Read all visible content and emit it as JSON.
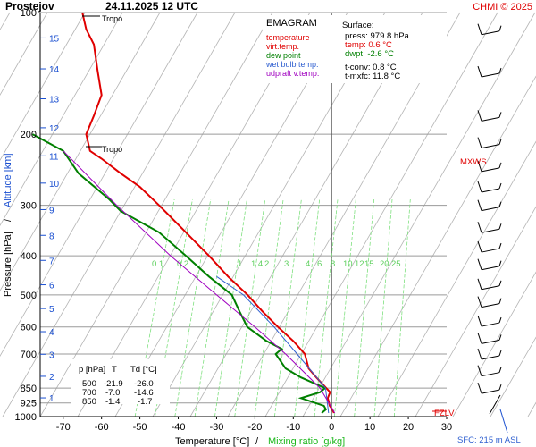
{
  "header": {
    "station": "Prostejov",
    "datetime": "24.11.2025 12 UTC",
    "credit": "CHMI © 2025"
  },
  "legend": {
    "title": "EMAGRAM",
    "items": [
      {
        "label": "temperature",
        "color": "#e00000"
      },
      {
        "label": "virt.temp.",
        "color": "#e00000"
      },
      {
        "label": "dew point",
        "color": "#008000"
      },
      {
        "label": "wet bulb temp.",
        "color": "#3060d0"
      },
      {
        "label": "udpraft v.temp.",
        "color": "#a000c0"
      }
    ]
  },
  "surface_box": {
    "title": "Surface:",
    "press": "press: 979.8 hPa",
    "temp": "temp: 0.6 °C",
    "dwpt": "dwpt: -2.6 °C",
    "wetbulb": "t-conv: 0.8 °C",
    "tconv": "t-mxfc: 11.8 °C",
    "colors": {
      "press": "#000000",
      "temp": "#e00000",
      "dwpt": "#008000"
    }
  },
  "table": {
    "header": [
      "p [hPa]",
      "T",
      "Td [°C]"
    ],
    "rows": [
      [
        "500",
        "-21.9",
        "-26.0"
      ],
      [
        "700",
        "-7.0",
        "-14.6"
      ],
      [
        "850",
        "-1.4",
        "-1.7"
      ]
    ]
  },
  "annotations": {
    "tropo": "Tropo",
    "mxws": "MXWS",
    "fzlv": "FZLV",
    "sfc": "SFC: 215 m ASL"
  },
  "axis": {
    "y_left_label": "Pressure [hPa]",
    "y_sep": " / ",
    "y_right_label": "Altitude [km]",
    "x_label": "Temperature [°C]",
    "x_sep": " / ",
    "x_label2": "Mixing ratio [g/kg]"
  },
  "chart_data": {
    "type": "line",
    "x_ticks": [
      -70,
      -60,
      -50,
      -40,
      -30,
      -20,
      -10,
      0,
      10,
      20,
      30
    ],
    "xlim": [
      -76,
      30
    ],
    "y_ticks": [
      100,
      200,
      300,
      400,
      500,
      600,
      700,
      850,
      925,
      1000
    ],
    "ylim": [
      100,
      1000
    ],
    "y_scale": "log",
    "altitude_ticks_km": [
      1,
      2,
      3,
      4,
      5,
      6,
      7,
      8,
      9,
      10,
      11,
      12,
      13,
      14,
      15
    ],
    "mixing_ratio_labels": [
      "0.1",
      "0.2",
      "1",
      "1.4",
      "2",
      "3",
      "4",
      "6",
      "8",
      "10",
      "12",
      "15",
      "20",
      "25"
    ],
    "mixing_ratio_values": [
      0.1,
      0.2,
      1,
      1.4,
      2,
      3,
      4,
      6,
      8,
      10,
      12,
      15,
      20,
      25
    ],
    "colors": {
      "temperature": "#e00000",
      "dewpoint": "#008000",
      "wetbulb": "#3060d0",
      "parcel": "#a000c0",
      "mixing": "#7fe07f",
      "isotherm": "#9a9a9a"
    },
    "series": [
      {
        "name": "temperature",
        "points": [
          [
            0.6,
            980
          ],
          [
            0.2,
            960
          ],
          [
            -0.5,
            940
          ],
          [
            -1.0,
            900
          ],
          [
            -0.4,
            870
          ],
          [
            -1.4,
            850
          ],
          [
            -4,
            800
          ],
          [
            -6,
            760
          ],
          [
            -7.0,
            700
          ],
          [
            -10,
            650
          ],
          [
            -14,
            600
          ],
          [
            -18,
            550
          ],
          [
            -21.9,
            500
          ],
          [
            -27,
            450
          ],
          [
            -32,
            400
          ],
          [
            -38,
            350
          ],
          [
            -45,
            300
          ],
          [
            -50,
            270
          ],
          [
            -55,
            250
          ],
          [
            -60,
            230
          ],
          [
            -63,
            220
          ],
          [
            -64,
            200
          ],
          [
            -62,
            180
          ],
          [
            -60,
            160
          ],
          [
            -61,
            140
          ],
          [
            -62,
            120
          ],
          [
            -64,
            110
          ],
          [
            -65,
            100
          ]
        ]
      },
      {
        "name": "dew point",
        "points": [
          [
            -2.6,
            980
          ],
          [
            -1.5,
            960
          ],
          [
            -2,
            940
          ],
          [
            -8,
            900
          ],
          [
            -3,
            870
          ],
          [
            -1.7,
            850
          ],
          [
            -8,
            800
          ],
          [
            -12,
            760
          ],
          [
            -14.6,
            700
          ],
          [
            -13,
            680
          ],
          [
            -17,
            650
          ],
          [
            -22,
            600
          ],
          [
            -24,
            550
          ],
          [
            -26.0,
            500
          ],
          [
            -32,
            450
          ],
          [
            -38,
            400
          ],
          [
            -45,
            350
          ],
          [
            -55,
            310
          ],
          [
            -58,
            290
          ],
          [
            -66,
            250
          ],
          [
            -70,
            220
          ],
          [
            -78,
            200
          ]
        ]
      },
      {
        "name": "wet bulb temp.",
        "points": [
          [
            -0.8,
            980
          ],
          [
            -1.6,
            850
          ],
          [
            -9,
            700
          ],
          [
            -15,
            600
          ],
          [
            -23,
            500
          ],
          [
            -30,
            450
          ]
        ]
      },
      {
        "name": "udpraft v.temp.",
        "points": [
          [
            0.8,
            980
          ],
          [
            -3,
            850
          ],
          [
            -12,
            700
          ],
          [
            -20,
            600
          ],
          [
            -30,
            500
          ],
          [
            -42,
            400
          ],
          [
            -56,
            300
          ],
          [
            -70,
            220
          ]
        ]
      }
    ]
  }
}
